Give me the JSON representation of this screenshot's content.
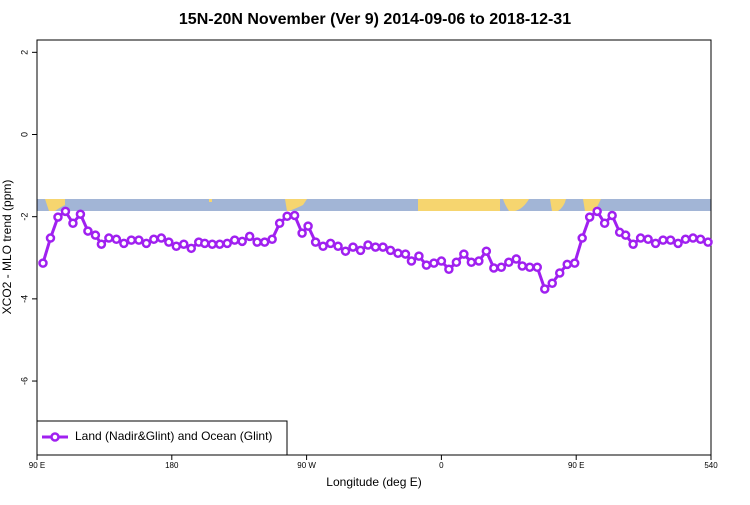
{
  "chart_data": {
    "type": "line",
    "title": "15N-20N November (Ver 9)   2014-09-06 to 2018-12-31",
    "x_label": "Longitude (deg E)",
    "y_label": "XCO2 - MLO trend (ppm)",
    "x": [
      94,
      99,
      104,
      109,
      114,
      119,
      124,
      129,
      133,
      138,
      143,
      148,
      153,
      158,
      163,
      168,
      173,
      178,
      183,
      188,
      193,
      198,
      202,
      207,
      212,
      217,
      222,
      227,
      232,
      237,
      242,
      247,
      252,
      257,
      262,
      267,
      271,
      276,
      281,
      286,
      291,
      296,
      301,
      306,
      311,
      316,
      321,
      326,
      331,
      336,
      340,
      345,
      350,
      355,
      360,
      365,
      370,
      375,
      380,
      385,
      390,
      395,
      400,
      405,
      410,
      414,
      419,
      424,
      429,
      434,
      439,
      444,
      449,
      454,
      459,
      464,
      469,
      474,
      479,
      483,
      488,
      493,
      498,
      503,
      508,
      513,
      518,
      523,
      528,
      533,
      538
    ],
    "series": [
      {
        "name": "Land (Nadir&Glint) and Ocean (Glint)",
        "color": "#a020f0",
        "values": [
          -3.13,
          -2.52,
          -2.01,
          -1.87,
          -2.16,
          -1.94,
          -2.35,
          -2.45,
          -2.67,
          -2.52,
          -2.55,
          -2.65,
          -2.57,
          -2.57,
          -2.65,
          -2.55,
          -2.52,
          -2.62,
          -2.72,
          -2.67,
          -2.77,
          -2.62,
          -2.65,
          -2.67,
          -2.67,
          -2.65,
          -2.57,
          -2.6,
          -2.48,
          -2.62,
          -2.62,
          -2.55,
          -2.16,
          -1.99,
          -1.97,
          -2.4,
          -2.23,
          -2.62,
          -2.72,
          -2.65,
          -2.72,
          -2.84,
          -2.74,
          -2.82,
          -2.69,
          -2.74,
          -2.74,
          -2.82,
          -2.89,
          -2.91,
          -3.08,
          -2.96,
          -3.18,
          -3.13,
          -3.08,
          -3.28,
          -3.11,
          -2.91,
          -3.11,
          -3.08,
          -2.84,
          -3.25,
          -3.23,
          -3.11,
          -3.03,
          -3.2,
          -3.23,
          -3.23,
          -3.76,
          -3.62,
          -3.37,
          -3.16,
          -3.13,
          -2.52,
          -2.01,
          -1.87,
          -2.16,
          -1.97,
          -2.38,
          -2.45,
          -2.67,
          -2.52,
          -2.55,
          -2.65,
          -2.57,
          -2.57,
          -2.65,
          -2.55,
          -2.52,
          -2.55,
          -2.62
        ]
      }
    ],
    "xlim": [
      90,
      540
    ],
    "xticks": [
      {
        "value": 90,
        "label": "90 E"
      },
      180,
      {
        "value": 270,
        "label": "90 W"
      },
      {
        "value": 360,
        "label": "0"
      },
      {
        "value": 450,
        "label": "90 E"
      },
      540
    ],
    "ylim": [
      -7.8,
      2.3
    ],
    "yticks": [
      2,
      0,
      -2,
      -4,
      -6
    ],
    "legend": "bottom-left"
  }
}
